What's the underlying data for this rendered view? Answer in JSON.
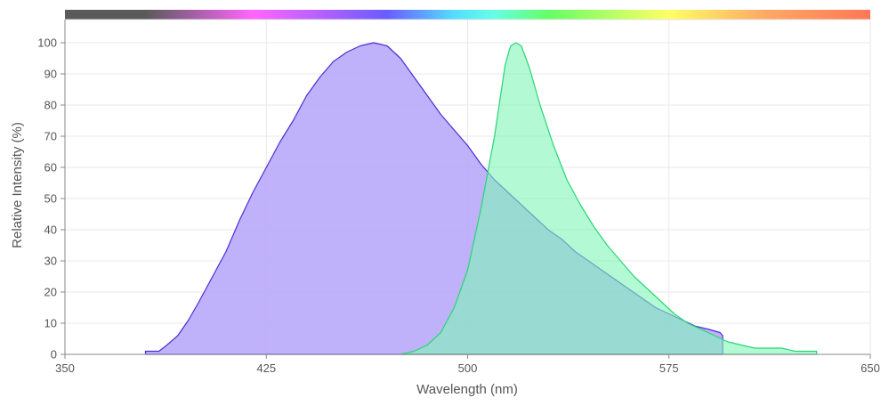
{
  "chart_data": {
    "type": "area",
    "title": "",
    "xlabel": "Wavelength (nm)",
    "ylabel": "Relative Intensity (%)",
    "xlim": [
      350,
      650
    ],
    "ylim": [
      0,
      105
    ],
    "x_ticks": [
      350,
      425,
      500,
      575,
      650
    ],
    "y_ticks": [
      0,
      10,
      20,
      30,
      40,
      50,
      60,
      70,
      80,
      90,
      100
    ],
    "grid": true,
    "legend": "none",
    "spectrum_bar": {
      "gradient_stops": [
        {
          "nm": 350,
          "color": "#5a5a5a"
        },
        {
          "nm": 380,
          "color": "#5a5a5a"
        },
        {
          "nm": 420,
          "color": "#ff66ff"
        },
        {
          "nm": 470,
          "color": "#6a5cff"
        },
        {
          "nm": 495,
          "color": "#55ddff"
        },
        {
          "nm": 510,
          "color": "#66ffe6"
        },
        {
          "nm": 530,
          "color": "#66ff66"
        },
        {
          "nm": 575,
          "color": "#ffff66"
        },
        {
          "nm": 610,
          "color": "#ffaa66"
        },
        {
          "nm": 650,
          "color": "#ff7755"
        }
      ]
    },
    "series": [
      {
        "fill": "#b9a8fb",
        "stroke": "#4a2fd6",
        "points": [
          [
            380,
            1
          ],
          [
            385,
            1
          ],
          [
            388,
            3
          ],
          [
            392,
            6
          ],
          [
            396,
            11
          ],
          [
            400,
            17
          ],
          [
            405,
            25
          ],
          [
            410,
            33
          ],
          [
            415,
            43
          ],
          [
            420,
            52
          ],
          [
            425,
            60
          ],
          [
            430,
            68
          ],
          [
            435,
            75
          ],
          [
            440,
            83
          ],
          [
            445,
            89
          ],
          [
            450,
            94
          ],
          [
            455,
            97
          ],
          [
            460,
            99
          ],
          [
            465,
            100
          ],
          [
            470,
            99
          ],
          [
            475,
            95
          ],
          [
            480,
            89
          ],
          [
            485,
            83
          ],
          [
            490,
            77
          ],
          [
            495,
            72
          ],
          [
            500,
            67
          ],
          [
            505,
            61
          ],
          [
            510,
            56
          ],
          [
            515,
            52
          ],
          [
            520,
            48
          ],
          [
            525,
            44
          ],
          [
            530,
            40
          ],
          [
            535,
            37
          ],
          [
            540,
            33
          ],
          [
            545,
            30
          ],
          [
            550,
            27
          ],
          [
            555,
            24
          ],
          [
            560,
            21
          ],
          [
            565,
            18
          ],
          [
            570,
            15
          ],
          [
            575,
            13
          ],
          [
            580,
            11
          ],
          [
            585,
            9
          ],
          [
            590,
            8
          ],
          [
            594,
            7
          ],
          [
            595,
            6
          ],
          [
            595,
            0
          ],
          [
            380,
            0
          ]
        ]
      },
      {
        "fill": "#7ff5b8",
        "stroke": "#28d774",
        "points": [
          [
            475,
            0
          ],
          [
            480,
            1
          ],
          [
            485,
            3
          ],
          [
            490,
            7
          ],
          [
            495,
            15
          ],
          [
            500,
            27
          ],
          [
            505,
            47
          ],
          [
            510,
            70
          ],
          [
            514,
            93
          ],
          [
            516,
            99
          ],
          [
            518,
            100
          ],
          [
            520,
            99
          ],
          [
            523,
            92
          ],
          [
            527,
            80
          ],
          [
            532,
            67
          ],
          [
            537,
            56
          ],
          [
            542,
            48
          ],
          [
            547,
            41
          ],
          [
            552,
            35
          ],
          [
            557,
            30
          ],
          [
            562,
            25
          ],
          [
            567,
            21
          ],
          [
            572,
            17
          ],
          [
            577,
            13
          ],
          [
            582,
            10
          ],
          [
            587,
            8
          ],
          [
            592,
            6
          ],
          [
            597,
            4
          ],
          [
            602,
            3
          ],
          [
            607,
            2
          ],
          [
            612,
            2
          ],
          [
            617,
            2
          ],
          [
            622,
            1
          ],
          [
            627,
            1
          ],
          [
            630,
            1
          ],
          [
            630,
            0
          ],
          [
            475,
            0
          ]
        ]
      }
    ]
  }
}
